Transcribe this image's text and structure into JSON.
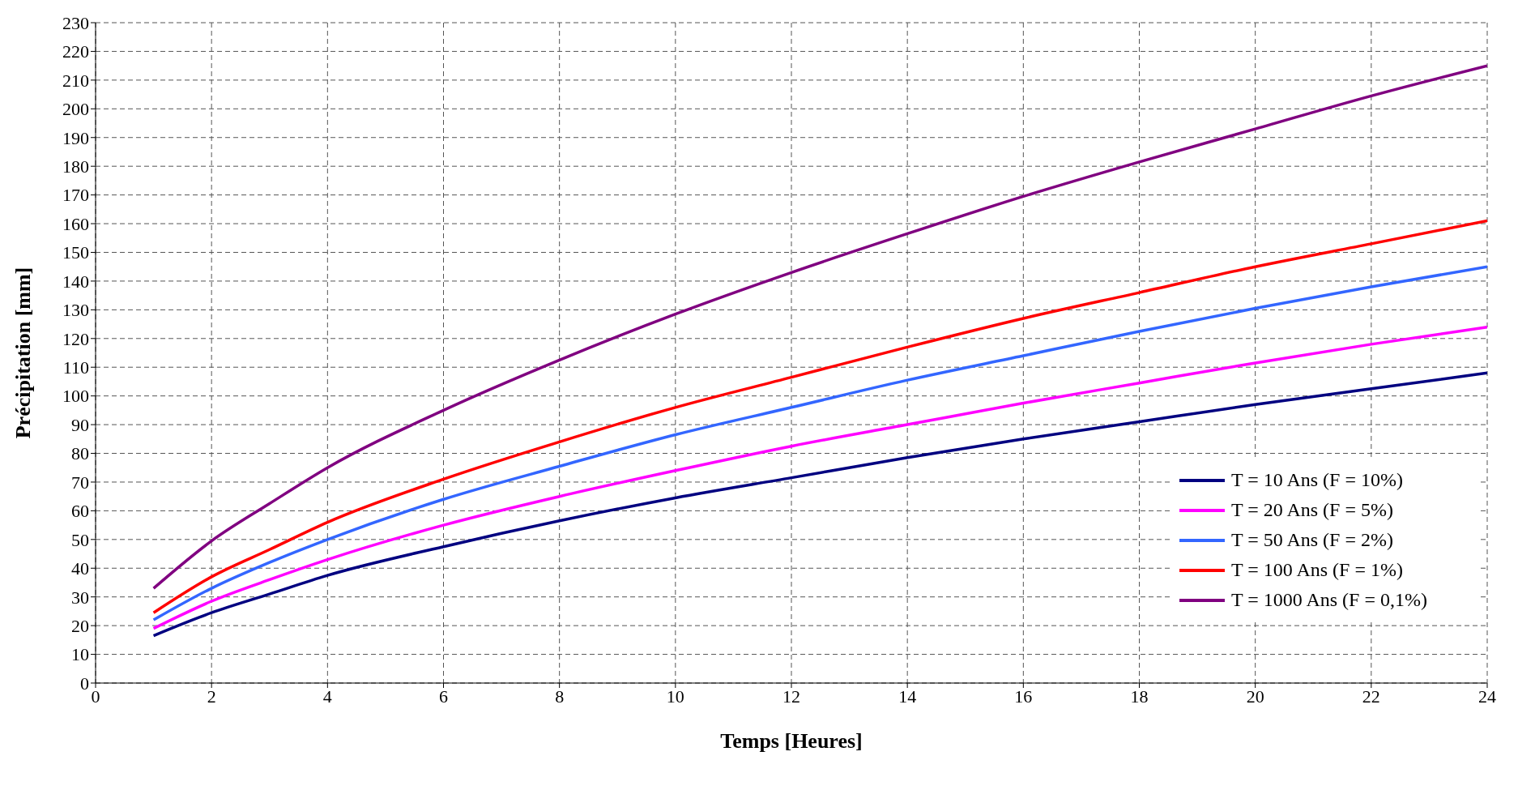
{
  "chart_data": {
    "type": "line",
    "xlabel": "Temps [Heures]",
    "ylabel": "Précipitation [mm]",
    "x": [
      1,
      2,
      3,
      4,
      6,
      8,
      10,
      12,
      14,
      16,
      18,
      20,
      22,
      24
    ],
    "xlim": [
      0,
      24
    ],
    "xticks": [
      0,
      2,
      4,
      6,
      8,
      10,
      12,
      14,
      16,
      18,
      20,
      22,
      24
    ],
    "ylim": [
      0,
      230
    ],
    "yticks": [
      0,
      10,
      20,
      30,
      40,
      50,
      60,
      70,
      80,
      90,
      100,
      110,
      120,
      130,
      140,
      150,
      160,
      170,
      180,
      190,
      200,
      210,
      220,
      230
    ],
    "grid": true,
    "legend": "bottom right",
    "marker": "none",
    "line_style": "solid",
    "series": [
      {
        "name": "T = 10 Ans (F = 10%)",
        "color": "#000080",
        "values": [
          16.5,
          24.5,
          31,
          37.5,
          47.5,
          56.5,
          64.5,
          71.5,
          78.5,
          85,
          91,
          97,
          102.5,
          108
        ]
      },
      {
        "name": "T = 20 Ans (F = 5%)",
        "color": "#ff00ff",
        "values": [
          19,
          28.5,
          36,
          43,
          55,
          65,
          74,
          82.5,
          90,
          97.5,
          104.5,
          111.5,
          118,
          124
        ]
      },
      {
        "name": "T = 50 Ans (F = 2%)",
        "color": "#3366ff",
        "values": [
          22,
          33,
          42,
          50,
          64,
          75.5,
          86.5,
          96,
          105.5,
          114,
          122.5,
          130.5,
          138,
          145
        ]
      },
      {
        "name": "T = 100 Ans (F = 1%)",
        "color": "#ff0000",
        "values": [
          24.5,
          37,
          46.5,
          56,
          71,
          84,
          96,
          106.5,
          117,
          127,
          136,
          145,
          153,
          161
        ]
      },
      {
        "name": "T = 1000 Ans (F = 0,1%)",
        "color": "#800080",
        "values": [
          33,
          49.5,
          62.5,
          75,
          95,
          112.5,
          128.5,
          143,
          156.5,
          169.5,
          181.5,
          193,
          204.5,
          215
        ]
      }
    ]
  }
}
